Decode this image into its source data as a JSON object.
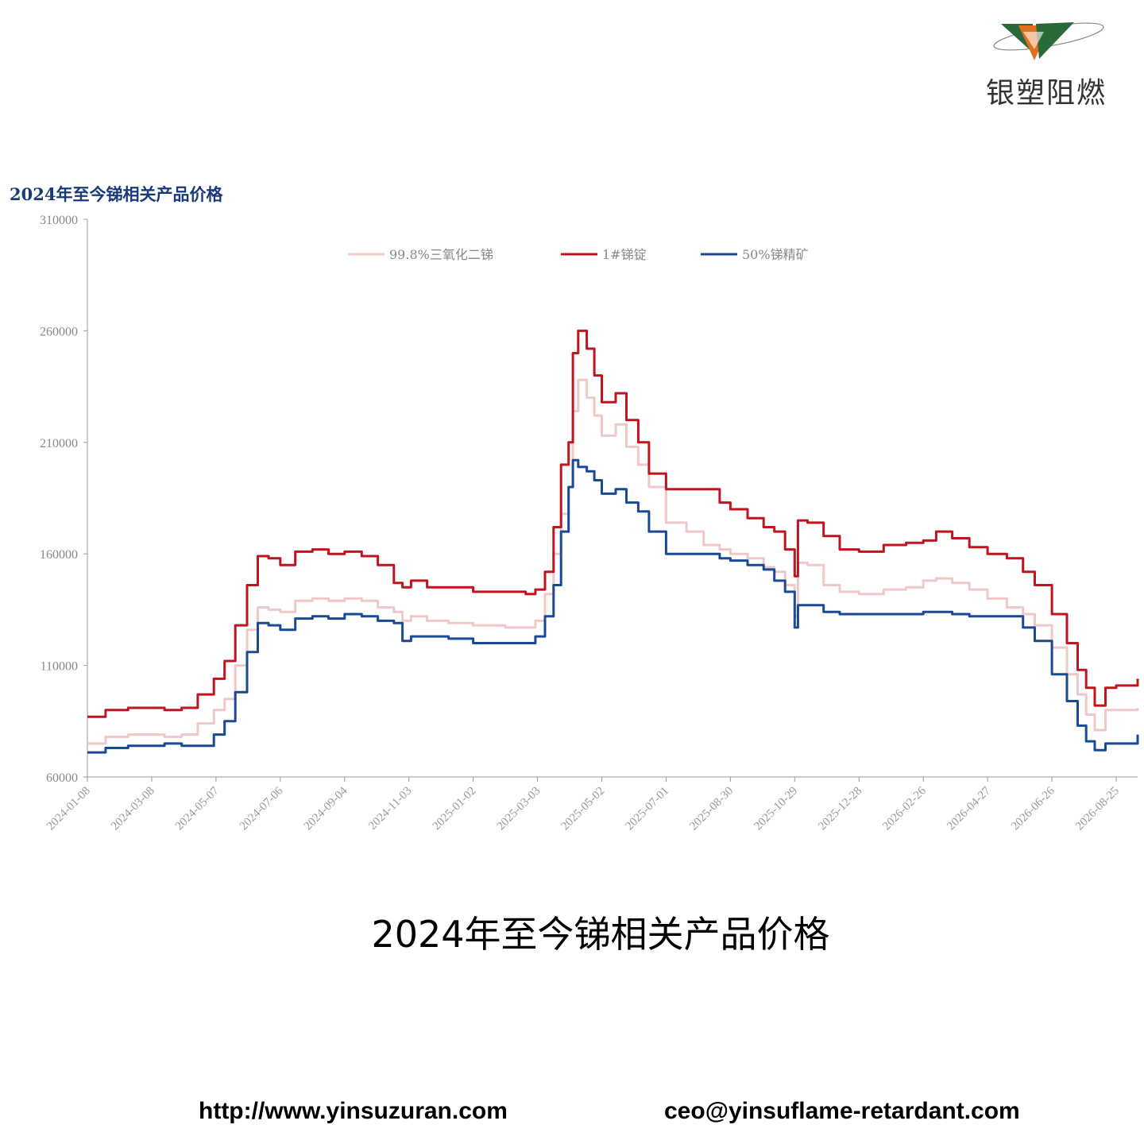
{
  "brand": {
    "name": "银塑阻燃"
  },
  "caption": "2024年至今锑相关产品价格",
  "footer": {
    "url": "http://www.yinsuzuran.com",
    "email": "ceo@yinsuflame-retardant.com"
  },
  "colors": {
    "series_trioxide": "#f0c8c8",
    "series_ingot": "#c0141e",
    "series_concentrate": "#1a4a96",
    "title": "#1a3a7a",
    "axis": "#999999"
  },
  "chart_data": {
    "type": "line",
    "title": "2024年至今锑相关产品价格",
    "xlabel": "",
    "ylabel": "",
    "ylim": [
      60000,
      310000
    ],
    "yticks": [
      "310000",
      "260000",
      "210000",
      "160000",
      "110000",
      "60000"
    ],
    "xticks": [
      "2024-01-08",
      "2024-03-08",
      "2024-05-07",
      "2024-07-06",
      "2024-09-04",
      "2024-11-03",
      "2025-01-02",
      "2025-03-03",
      "2025-05-02",
      "2025-07-01",
      "2025-08-30",
      "2025-10-29",
      "2025-12-28",
      "2026-02-26",
      "2026-04-27",
      "2026-06-26",
      "2026-08-25"
    ],
    "xrange": [
      "2024-01-08",
      "2026-09-14"
    ],
    "legend_position": "top-center",
    "grid": false,
    "series": [
      {
        "name": "99.8%三氧化二锑",
        "color": "#f0c8c8",
        "dates": [
          "2024-01-08",
          "2024-01-25",
          "2024-02-15",
          "2024-03-05",
          "2024-03-20",
          "2024-04-05",
          "2024-04-20",
          "2024-05-05",
          "2024-05-15",
          "2024-05-25",
          "2024-06-05",
          "2024-06-15",
          "2024-06-25",
          "2024-07-06",
          "2024-07-20",
          "2024-08-05",
          "2024-08-20",
          "2024-09-04",
          "2024-09-20",
          "2024-10-05",
          "2024-10-20",
          "2024-10-28",
          "2024-11-05",
          "2024-11-20",
          "2024-12-10",
          "2025-01-02",
          "2025-02-01",
          "2025-02-20",
          "2025-03-01",
          "2025-03-10",
          "2025-03-18",
          "2025-03-25",
          "2025-04-01",
          "2025-04-05",
          "2025-04-10",
          "2025-04-18",
          "2025-04-25",
          "2025-05-02",
          "2025-05-15",
          "2025-05-25",
          "2025-06-05",
          "2025-06-15",
          "2025-07-01",
          "2025-07-20",
          "2025-08-05",
          "2025-08-20",
          "2025-08-30",
          "2025-09-15",
          "2025-09-30",
          "2025-10-10",
          "2025-10-20",
          "2025-10-29",
          "2025-11-01",
          "2025-11-10",
          "2025-11-25",
          "2025-12-10",
          "2025-12-28",
          "2026-01-20",
          "2026-02-10",
          "2026-02-26",
          "2026-03-10",
          "2026-03-25",
          "2026-04-10",
          "2026-04-27",
          "2026-05-15",
          "2026-05-30",
          "2026-06-10",
          "2026-06-26",
          "2026-07-10",
          "2026-07-20",
          "2026-07-28",
          "2026-08-05",
          "2026-08-15",
          "2026-08-25",
          "2026-09-05",
          "2026-09-14"
        ],
        "values": [
          75000,
          78000,
          79000,
          79000,
          78000,
          79000,
          84000,
          90000,
          95000,
          110000,
          126000,
          136000,
          135000,
          134000,
          139000,
          140000,
          139000,
          140000,
          139000,
          136000,
          134000,
          130000,
          132000,
          130000,
          129000,
          128000,
          127000,
          127000,
          130000,
          142000,
          160000,
          178000,
          190000,
          224000,
          238000,
          230000,
          222000,
          213000,
          218000,
          208000,
          200000,
          190000,
          174000,
          170000,
          164000,
          162000,
          160000,
          158000,
          154000,
          152000,
          146000,
          132000,
          156000,
          155000,
          146000,
          143000,
          142000,
          144000,
          145000,
          148000,
          149000,
          147000,
          144000,
          140000,
          136000,
          133000,
          128000,
          118000,
          106000,
          97000,
          88000,
          81000,
          90000,
          90000,
          90000,
          91000
        ]
      },
      {
        "name": "1#锑锭",
        "color": "#c0141e",
        "dates": [
          "2024-01-08",
          "2024-01-25",
          "2024-02-15",
          "2024-03-05",
          "2024-03-20",
          "2024-04-05",
          "2024-04-20",
          "2024-05-05",
          "2024-05-15",
          "2024-05-25",
          "2024-06-05",
          "2024-06-15",
          "2024-06-25",
          "2024-07-06",
          "2024-07-20",
          "2024-08-05",
          "2024-08-20",
          "2024-09-04",
          "2024-09-20",
          "2024-10-05",
          "2024-10-20",
          "2024-10-28",
          "2024-11-05",
          "2024-11-20",
          "2024-12-10",
          "2025-01-02",
          "2025-02-01",
          "2025-02-20",
          "2025-03-01",
          "2025-03-10",
          "2025-03-18",
          "2025-03-25",
          "2025-04-01",
          "2025-04-05",
          "2025-04-10",
          "2025-04-18",
          "2025-04-25",
          "2025-05-02",
          "2025-05-15",
          "2025-05-25",
          "2025-06-05",
          "2025-06-15",
          "2025-07-01",
          "2025-07-20",
          "2025-08-05",
          "2025-08-20",
          "2025-08-30",
          "2025-09-15",
          "2025-09-30",
          "2025-10-10",
          "2025-10-20",
          "2025-10-29",
          "2025-11-01",
          "2025-11-10",
          "2025-11-25",
          "2025-12-10",
          "2025-12-28",
          "2026-01-20",
          "2026-02-10",
          "2026-02-26",
          "2026-03-10",
          "2026-03-25",
          "2026-04-10",
          "2026-04-27",
          "2026-05-15",
          "2026-05-30",
          "2026-06-10",
          "2026-06-26",
          "2026-07-10",
          "2026-07-20",
          "2026-07-28",
          "2026-08-05",
          "2026-08-15",
          "2026-08-25",
          "2026-09-05",
          "2026-09-14"
        ],
        "values": [
          87000,
          90000,
          91000,
          91000,
          90000,
          91000,
          97000,
          104000,
          112000,
          128000,
          146000,
          159000,
          158000,
          155000,
          161000,
          162000,
          160000,
          161000,
          159000,
          155000,
          147000,
          145000,
          148000,
          145000,
          145000,
          143000,
          143000,
          142000,
          144000,
          152000,
          172000,
          200000,
          210000,
          250000,
          260000,
          252000,
          240000,
          228000,
          232000,
          220000,
          210000,
          196000,
          189000,
          189000,
          189000,
          183000,
          180000,
          176000,
          172000,
          170000,
          162000,
          150000,
          175000,
          174000,
          168000,
          162000,
          161000,
          164000,
          165000,
          166000,
          170000,
          167000,
          163000,
          160000,
          158000,
          152000,
          146000,
          133000,
          120000,
          108000,
          100000,
          92000,
          100000,
          101000,
          101000,
          104000
        ]
      },
      {
        "name": "50%锑精矿",
        "color": "#1a4a96",
        "dates": [
          "2024-01-08",
          "2024-01-25",
          "2024-02-15",
          "2024-03-05",
          "2024-03-20",
          "2024-04-05",
          "2024-04-20",
          "2024-05-05",
          "2024-05-15",
          "2024-05-25",
          "2024-06-05",
          "2024-06-15",
          "2024-06-25",
          "2024-07-06",
          "2024-07-20",
          "2024-08-05",
          "2024-08-20",
          "2024-09-04",
          "2024-09-20",
          "2024-10-05",
          "2024-10-20",
          "2024-10-28",
          "2024-11-05",
          "2024-11-20",
          "2024-12-10",
          "2025-01-02",
          "2025-02-01",
          "2025-02-20",
          "2025-03-01",
          "2025-03-10",
          "2025-03-18",
          "2025-03-25",
          "2025-04-01",
          "2025-04-05",
          "2025-04-10",
          "2025-04-18",
          "2025-04-25",
          "2025-05-02",
          "2025-05-15",
          "2025-05-25",
          "2025-06-05",
          "2025-06-15",
          "2025-07-01",
          "2025-07-20",
          "2025-08-05",
          "2025-08-20",
          "2025-08-30",
          "2025-09-15",
          "2025-09-30",
          "2025-10-10",
          "2025-10-20",
          "2025-10-29",
          "2025-11-01",
          "2025-11-10",
          "2025-11-25",
          "2025-12-10",
          "2025-12-28",
          "2026-01-20",
          "2026-02-10",
          "2026-02-26",
          "2026-03-10",
          "2026-03-25",
          "2026-04-10",
          "2026-04-27",
          "2026-05-15",
          "2026-05-30",
          "2026-06-10",
          "2026-06-26",
          "2026-07-10",
          "2026-07-20",
          "2026-07-28",
          "2026-08-05",
          "2026-08-15",
          "2026-08-25",
          "2026-09-05",
          "2026-09-14"
        ],
        "values": [
          71000,
          73000,
          74000,
          74000,
          75000,
          74000,
          74000,
          79000,
          85000,
          98000,
          116000,
          129000,
          128000,
          126000,
          131000,
          132000,
          131000,
          133000,
          132000,
          130000,
          129000,
          121000,
          123000,
          123000,
          122000,
          120000,
          120000,
          120000,
          123000,
          132000,
          146000,
          170000,
          190000,
          202000,
          199000,
          197000,
          193000,
          187000,
          189000,
          183000,
          179000,
          170000,
          160000,
          160000,
          160000,
          158000,
          157000,
          155000,
          153000,
          148000,
          143000,
          127000,
          137000,
          137000,
          134000,
          133000,
          133000,
          133000,
          133000,
          134000,
          134000,
          133000,
          132000,
          132000,
          132000,
          127000,
          121000,
          106000,
          94000,
          83000,
          76000,
          72000,
          75000,
          75000,
          75000,
          79000
        ]
      }
    ]
  }
}
